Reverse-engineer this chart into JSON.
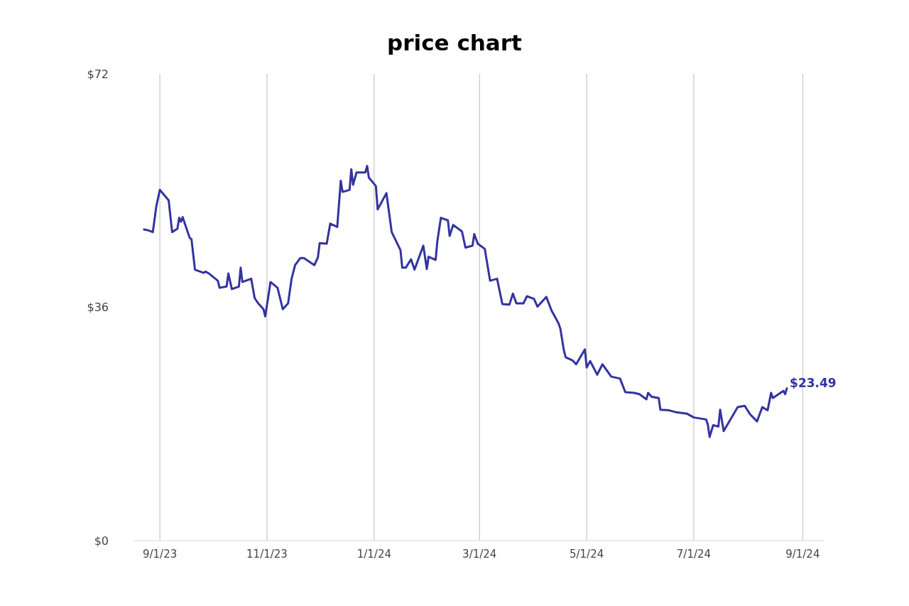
{
  "chart_data": {
    "type": "line",
    "title": "price chart",
    "x": [
      "2023-08-23",
      "2023-08-25",
      "2023-08-28",
      "2023-08-30",
      "2023-09-01",
      "2023-09-06",
      "2023-09-08",
      "2023-09-11",
      "2023-09-12",
      "2023-09-13",
      "2023-09-14",
      "2023-09-18",
      "2023-09-19",
      "2023-09-21",
      "2023-09-26",
      "2023-09-27",
      "2023-09-29",
      "2023-10-04",
      "2023-10-05",
      "2023-10-09",
      "2023-10-10",
      "2023-10-12",
      "2023-10-16",
      "2023-10-17",
      "2023-10-18",
      "2023-10-23",
      "2023-10-25",
      "2023-10-27",
      "2023-10-30",
      "2023-10-31",
      "2023-11-03",
      "2023-11-07",
      "2023-11-10",
      "2023-11-13",
      "2023-11-15",
      "2023-11-17",
      "2023-11-20",
      "2023-11-22",
      "2023-11-28",
      "2023-11-30",
      "2023-12-01",
      "2023-12-05",
      "2023-12-07",
      "2023-12-11",
      "2023-12-13",
      "2023-12-14",
      "2023-12-18",
      "2023-12-19",
      "2023-12-20",
      "2023-12-22",
      "2023-12-27",
      "2023-12-28",
      "2023-12-29",
      "2024-01-02",
      "2024-01-03",
      "2024-01-08",
      "2024-01-11",
      "2024-01-16",
      "2024-01-17",
      "2024-01-19",
      "2024-01-22",
      "2024-01-24",
      "2024-01-29",
      "2024-01-31",
      "2024-02-01",
      "2024-02-05",
      "2024-02-06",
      "2024-02-08",
      "2024-02-12",
      "2024-02-13",
      "2024-02-15",
      "2024-02-20",
      "2024-02-22",
      "2024-02-26",
      "2024-02-27",
      "2024-02-29",
      "2024-03-04",
      "2024-03-07",
      "2024-03-11",
      "2024-03-14",
      "2024-03-18",
      "2024-03-20",
      "2024-03-22",
      "2024-03-26",
      "2024-03-28",
      "2024-04-01",
      "2024-04-03",
      "2024-04-08",
      "2024-04-11",
      "2024-04-15",
      "2024-04-16",
      "2024-04-18",
      "2024-04-19",
      "2024-04-23",
      "2024-04-25",
      "2024-04-30",
      "2024-05-01",
      "2024-05-03",
      "2024-05-07",
      "2024-05-10",
      "2024-05-15",
      "2024-05-20",
      "2024-05-23",
      "2024-05-28",
      "2024-05-31",
      "2024-06-04",
      "2024-06-05",
      "2024-06-07",
      "2024-06-11",
      "2024-06-12",
      "2024-06-17",
      "2024-06-21",
      "2024-06-27",
      "2024-07-01",
      "2024-07-08",
      "2024-07-09",
      "2024-07-10",
      "2024-07-12",
      "2024-07-15",
      "2024-07-16",
      "2024-07-18",
      "2024-07-26",
      "2024-07-30",
      "2024-08-02",
      "2024-08-06",
      "2024-08-09",
      "2024-08-12",
      "2024-08-14",
      "2024-08-15",
      "2024-08-21",
      "2024-08-22",
      "2024-08-23"
    ],
    "series": [
      {
        "color": "#3333a0",
        "values": [
          48.0,
          47.9,
          47.6,
          51.6,
          54.1,
          52.5,
          47.6,
          48.1,
          49.8,
          49.2,
          49.9,
          46.7,
          46.5,
          41.8,
          41.3,
          41.5,
          41.2,
          40.1,
          39.0,
          39.2,
          41.2,
          38.8,
          39.2,
          42.1,
          39.9,
          40.4,
          37.4,
          36.6,
          35.7,
          34.6,
          39.9,
          39.0,
          35.7,
          36.6,
          40.4,
          42.5,
          43.6,
          43.6,
          42.5,
          43.7,
          45.9,
          45.8,
          48.9,
          48.4,
          55.5,
          53.8,
          54.1,
          57.3,
          54.9,
          56.8,
          56.8,
          57.8,
          56.0,
          54.7,
          51.1,
          53.6,
          47.6,
          44.8,
          42.1,
          42.1,
          43.4,
          41.8,
          45.5,
          41.9,
          43.8,
          43.3,
          46.2,
          49.8,
          49.4,
          47.0,
          48.7,
          47.7,
          45.2,
          45.5,
          47.3,
          45.8,
          45.0,
          40.1,
          40.4,
          36.5,
          36.4,
          38.1,
          36.6,
          36.6,
          37.7,
          37.3,
          36.1,
          37.6,
          35.5,
          33.5,
          32.7,
          29.4,
          28.3,
          27.8,
          27.2,
          29.5,
          26.7,
          27.7,
          25.6,
          27.2,
          25.3,
          25.0,
          22.9,
          22.8,
          22.6,
          21.8,
          22.8,
          22.2,
          22.0,
          20.2,
          20.1,
          19.8,
          19.6,
          19.0,
          18.7,
          17.9,
          16.0,
          17.8,
          17.6,
          20.2,
          16.9,
          20.6,
          20.8,
          19.5,
          18.4,
          20.6,
          20.1,
          22.8,
          22.0,
          23.1,
          22.6,
          23.49
        ]
      }
    ],
    "xlim": [
      "2023-08-17",
      "2024-09-13"
    ],
    "xticks": [
      {
        "value": "2023-09-01",
        "label": "9/1/23"
      },
      {
        "value": "2023-11-01",
        "label": "11/1/23"
      },
      {
        "value": "2024-01-01",
        "label": "1/1/24"
      },
      {
        "value": "2024-03-01",
        "label": "3/1/24"
      },
      {
        "value": "2024-05-01",
        "label": "5/1/24"
      },
      {
        "value": "2024-07-01",
        "label": "7/1/24"
      },
      {
        "value": "2024-09-01",
        "label": "9/1/24"
      }
    ],
    "ylim": [
      0,
      72
    ],
    "yticks": [
      {
        "value": 0,
        "label": "$0"
      },
      {
        "value": 36,
        "label": "$36"
      },
      {
        "value": 72,
        "label": "$72"
      }
    ],
    "grid": "x",
    "annotations": [
      {
        "text": "$23.49",
        "x": "2024-08-23",
        "y": 23.49
      }
    ]
  }
}
